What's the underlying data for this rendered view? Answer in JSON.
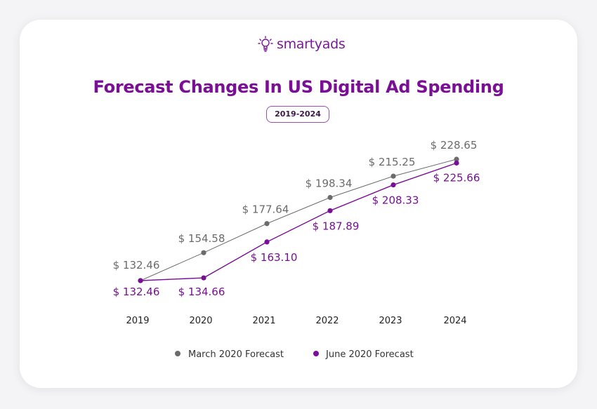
{
  "logo": {
    "text": "smartyads",
    "icon": "lightbulb-icon"
  },
  "title": "Forecast Changes In US Digital Ad Spending",
  "badge": "2019-2024",
  "colors": {
    "march": "#6b6b6b",
    "june": "#7a0f96",
    "title": "#7a0f96"
  },
  "chart_data": {
    "type": "line",
    "title": "Forecast Changes In US Digital Ad Spending",
    "subtitle": "2019-2024",
    "categories": [
      "2019",
      "2020",
      "2021",
      "2022",
      "2023",
      "2024"
    ],
    "series": [
      {
        "name": "March 2020 Forecast",
        "values": [
          132.46,
          154.58,
          177.64,
          198.34,
          215.25,
          228.65
        ],
        "labels": [
          "$ 132.46",
          "$ 154.58",
          "$ 177.64",
          "$ 198.34",
          "$ 215.25",
          "$ 228.65"
        ],
        "color": "#6b6b6b"
      },
      {
        "name": "June 2020 Forecast",
        "values": [
          132.46,
          134.66,
          163.1,
          187.89,
          208.33,
          225.66
        ],
        "labels": [
          "$ 132.46",
          "$ 134.66",
          "$ 163.10",
          "$ 187.89",
          "$ 208.33",
          "$ 225.66"
        ],
        "color": "#7a0f96"
      }
    ],
    "grid": false,
    "legend": "bottom"
  }
}
